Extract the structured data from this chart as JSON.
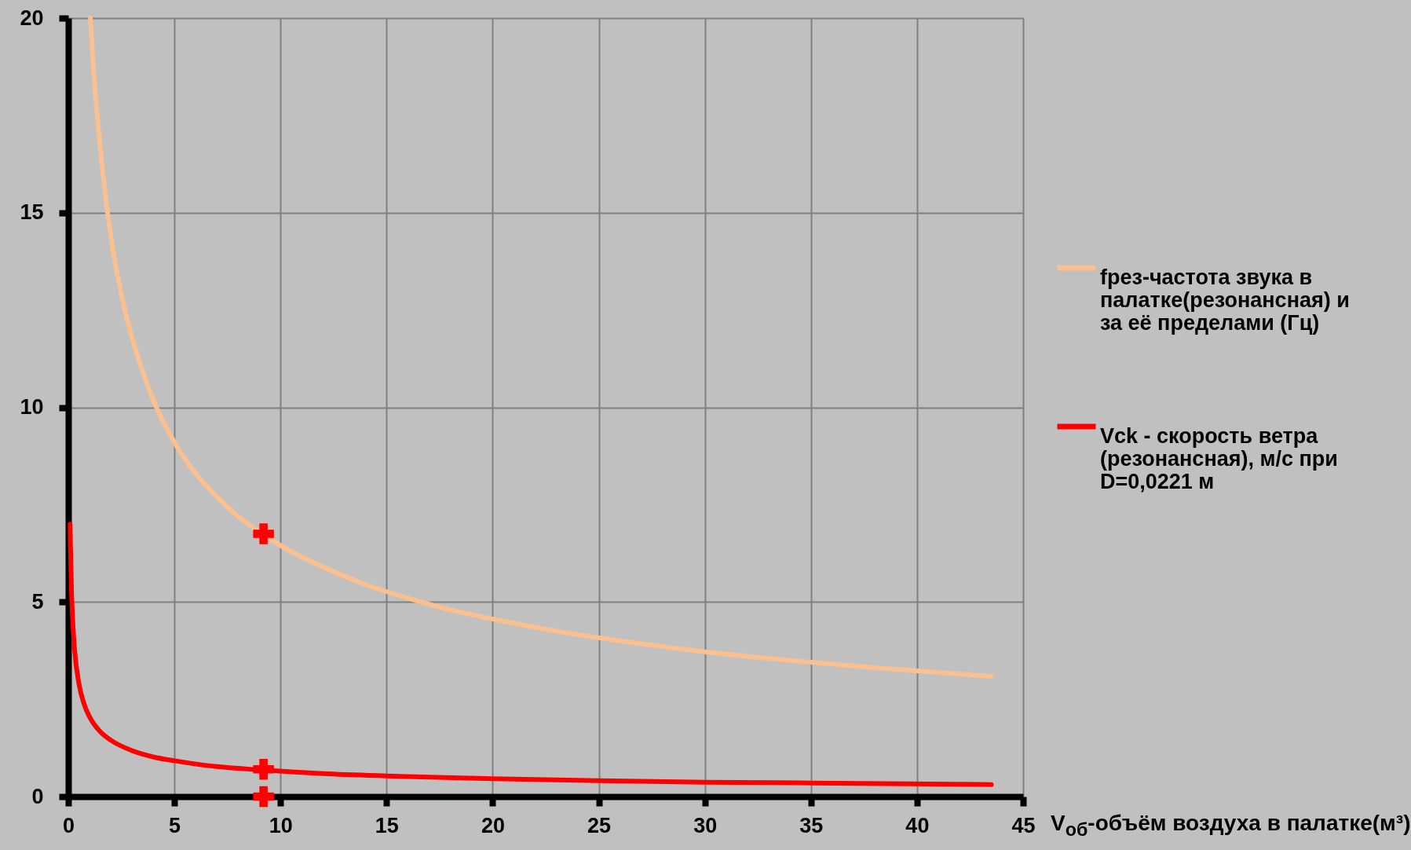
{
  "chart_data": {
    "type": "line",
    "xlabel": "V$_{об}$-объём воздуха в палатке(м³)",
    "xlim": [
      0,
      45
    ],
    "xticks": [
      0,
      5,
      10,
      15,
      20,
      25,
      30,
      35,
      40,
      45
    ],
    "ylim": [
      0,
      20
    ],
    "yticks": [
      0,
      5,
      10,
      15,
      20
    ],
    "grid": true,
    "legend": "right",
    "line_style": "solid",
    "series": [
      {
        "name": "fрез-частота звука в палатке(резонансная) и за её пределами (Гц)",
        "color": "#fac090",
        "x": [
          1.04,
          1.2,
          1.5,
          2,
          2.5,
          3,
          4,
          5,
          6,
          7,
          8,
          9.2,
          10,
          12,
          14,
          16,
          18,
          20,
          23,
          26,
          30,
          34,
          38,
          43.5
        ],
        "values": [
          20,
          18.6,
          16.7,
          14.4,
          12.9,
          11.8,
          10.2,
          9.1,
          8.3,
          7.7,
          7.2,
          6.73,
          6.45,
          5.9,
          5.45,
          5.1,
          4.8,
          4.56,
          4.25,
          4.0,
          3.72,
          3.5,
          3.31,
          3.09
        ]
      },
      {
        "name": "Vck - скорость ветра (резонансная), м/с  при D=0,0221 м",
        "color": "#ff0000",
        "x": [
          0.085,
          0.1,
          0.15,
          0.2,
          0.3,
          0.5,
          0.75,
          1,
          1.5,
          2,
          3,
          4,
          5,
          7,
          9.2,
          12,
          15,
          20,
          25,
          30,
          35,
          43.5
        ],
        "values": [
          7.0,
          6.5,
          5.3,
          4.6,
          3.75,
          2.9,
          2.37,
          2.05,
          1.67,
          1.45,
          1.18,
          1.02,
          0.92,
          0.77,
          0.68,
          0.59,
          0.53,
          0.46,
          0.41,
          0.37,
          0.35,
          0.31
        ]
      },
      {
        "type": "scatter",
        "marker": "cross",
        "color": "#ff0000",
        "x": [
          9.2,
          9.2,
          9.2
        ],
        "values": [
          6.75,
          0.7,
          0
        ]
      }
    ]
  }
}
